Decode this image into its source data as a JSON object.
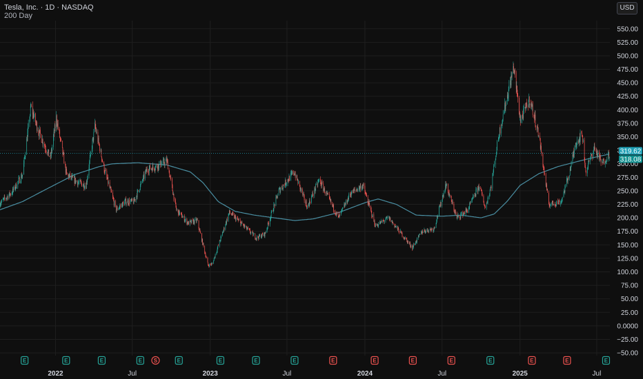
{
  "header": {
    "symbol_line": "Tesla, Inc. · 1D · NASDAQ",
    "indicator": "200 Day"
  },
  "currency_button": "USD",
  "colors": {
    "background": "#0f0f0f",
    "grid": "#1f1f1f",
    "up": "#26a69a",
    "down": "#ef5350",
    "ma": "#4a8fa3",
    "price_label": "#1f9fb5",
    "ma_label": "#0f8f8f"
  },
  "chart_data": {
    "type": "candlestick",
    "y_ticks": [
      550,
      525,
      500,
      475,
      450,
      425,
      400,
      375,
      350,
      325,
      300,
      275,
      250,
      225,
      200,
      175,
      150,
      125,
      100,
      75,
      50,
      25,
      0,
      -25,
      -50
    ],
    "y_tick_labels": [
      "550.00",
      "525.00",
      "500.00",
      "475.00",
      "450.00",
      "425.00",
      "400.00",
      "375.00",
      "350.00",
      "325.00",
      "300.00",
      "275.00",
      "250.00",
      "225.00",
      "200.00",
      "175.00",
      "150.00",
      "125.00",
      "100.00",
      "75.00",
      "50.00",
      "25.00",
      "0.0000",
      "−25.00",
      "−50.00"
    ],
    "ylim": [
      -55,
      565
    ],
    "x_range": [
      "2021-08-23",
      "2025-08-01"
    ],
    "x_ticks": [
      {
        "date": "2022-01-01",
        "label": "2022",
        "bold": true
      },
      {
        "date": "2022-07-01",
        "label": "Jul",
        "bold": false
      },
      {
        "date": "2023-01-01",
        "label": "2023",
        "bold": true
      },
      {
        "date": "2023-07-01",
        "label": "Jul",
        "bold": false
      },
      {
        "date": "2024-01-01",
        "label": "2024",
        "bold": true
      },
      {
        "date": "2024-07-01",
        "label": "Jul",
        "bold": false
      },
      {
        "date": "2025-01-01",
        "label": "2025",
        "bold": true
      },
      {
        "date": "2025-07-01",
        "label": "Jul",
        "bold": false
      }
    ],
    "price_path": [
      [
        "2021-08-23",
        227
      ],
      [
        "2021-09-20",
        247
      ],
      [
        "2021-10-15",
        280
      ],
      [
        "2021-11-04",
        405
      ],
      [
        "2021-11-22",
        360
      ],
      [
        "2021-12-06",
        335
      ],
      [
        "2021-12-20",
        310
      ],
      [
        "2022-01-03",
        385
      ],
      [
        "2022-01-27",
        280
      ],
      [
        "2022-02-24",
        265
      ],
      [
        "2022-03-14",
        260
      ],
      [
        "2022-04-04",
        370
      ],
      [
        "2022-04-26",
        290
      ],
      [
        "2022-05-24",
        215
      ],
      [
        "2022-06-15",
        230
      ],
      [
        "2022-07-05",
        230
      ],
      [
        "2022-08-05",
        290
      ],
      [
        "2022-08-25",
        295
      ],
      [
        "2022-09-21",
        305
      ],
      [
        "2022-10-13",
        215
      ],
      [
        "2022-11-10",
        190
      ],
      [
        "2022-12-01",
        195
      ],
      [
        "2022-12-27",
        112
      ],
      [
        "2023-01-06",
        115
      ],
      [
        "2023-02-15",
        210
      ],
      [
        "2023-03-01",
        200
      ],
      [
        "2023-04-20",
        163
      ],
      [
        "2023-05-10",
        170
      ],
      [
        "2023-06-12",
        250
      ],
      [
        "2023-07-18",
        285
      ],
      [
        "2023-08-18",
        220
      ],
      [
        "2023-09-15",
        270
      ],
      [
        "2023-10-31",
        200
      ],
      [
        "2023-11-28",
        245
      ],
      [
        "2023-12-27",
        260
      ],
      [
        "2024-01-26",
        185
      ],
      [
        "2024-02-26",
        200
      ],
      [
        "2024-04-22",
        145
      ],
      [
        "2024-05-15",
        175
      ],
      [
        "2024-06-12",
        180
      ],
      [
        "2024-07-10",
        262
      ],
      [
        "2024-08-05",
        200
      ],
      [
        "2024-08-30",
        214
      ],
      [
        "2024-09-27",
        260
      ],
      [
        "2024-10-11",
        218
      ],
      [
        "2024-10-25",
        260
      ],
      [
        "2024-11-11",
        350
      ],
      [
        "2024-12-17",
        480
      ],
      [
        "2025-01-02",
        380
      ],
      [
        "2025-01-24",
        420
      ],
      [
        "2025-02-14",
        355
      ],
      [
        "2025-03-10",
        225
      ],
      [
        "2025-04-08",
        230
      ],
      [
        "2025-04-28",
        285
      ],
      [
        "2025-05-13",
        340
      ],
      [
        "2025-05-28",
        355
      ],
      [
        "2025-06-05",
        285
      ],
      [
        "2025-06-25",
        330
      ],
      [
        "2025-07-14",
        300
      ],
      [
        "2025-07-31",
        319.62
      ]
    ],
    "ma_200_path": [
      [
        "2021-08-23",
        215
      ],
      [
        "2021-10-15",
        230
      ],
      [
        "2021-12-15",
        255
      ],
      [
        "2022-02-15",
        280
      ],
      [
        "2022-04-15",
        295
      ],
      [
        "2022-05-15",
        300
      ],
      [
        "2022-07-15",
        302
      ],
      [
        "2022-08-15",
        300
      ],
      [
        "2022-09-20",
        298
      ],
      [
        "2022-11-15",
        285
      ],
      [
        "2022-12-15",
        265
      ],
      [
        "2023-01-20",
        230
      ],
      [
        "2023-03-01",
        212
      ],
      [
        "2023-04-15",
        205
      ],
      [
        "2023-06-01",
        200
      ],
      [
        "2023-07-20",
        195
      ],
      [
        "2023-09-01",
        198
      ],
      [
        "2023-11-01",
        210
      ],
      [
        "2024-01-01",
        228
      ],
      [
        "2024-02-01",
        235
      ],
      [
        "2024-03-15",
        225
      ],
      [
        "2024-05-01",
        205
      ],
      [
        "2024-07-01",
        203
      ],
      [
        "2024-08-15",
        205
      ],
      [
        "2024-10-01",
        200
      ],
      [
        "2024-11-01",
        207
      ],
      [
        "2024-12-01",
        230
      ],
      [
        "2025-01-01",
        260
      ],
      [
        "2025-02-15",
        282
      ],
      [
        "2025-04-01",
        295
      ],
      [
        "2025-05-15",
        304
      ],
      [
        "2025-06-20",
        311
      ],
      [
        "2025-07-31",
        318.08
      ]
    ],
    "last_price": "319.62",
    "ma_value": "318.08",
    "events": [
      {
        "date": "2021-10-20",
        "type": "E",
        "kind": "earnings-positive"
      },
      {
        "date": "2022-01-26",
        "type": "E",
        "kind": "earnings-positive"
      },
      {
        "date": "2022-04-20",
        "type": "E",
        "kind": "earnings-positive"
      },
      {
        "date": "2022-07-20",
        "type": "E",
        "kind": "earnings-positive"
      },
      {
        "date": "2022-08-25",
        "type": "S",
        "kind": "split"
      },
      {
        "date": "2022-10-19",
        "type": "E",
        "kind": "earnings-positive"
      },
      {
        "date": "2023-01-25",
        "type": "E",
        "kind": "earnings-positive"
      },
      {
        "date": "2023-04-19",
        "type": "E",
        "kind": "earnings-positive"
      },
      {
        "date": "2023-07-19",
        "type": "E",
        "kind": "earnings-positive"
      },
      {
        "date": "2023-10-18",
        "type": "E",
        "kind": "earnings-negative"
      },
      {
        "date": "2024-01-24",
        "type": "E",
        "kind": "earnings-negative"
      },
      {
        "date": "2024-04-23",
        "type": "E",
        "kind": "earnings-negative"
      },
      {
        "date": "2024-07-23",
        "type": "E",
        "kind": "earnings-negative"
      },
      {
        "date": "2024-10-23",
        "type": "E",
        "kind": "earnings-positive"
      },
      {
        "date": "2025-01-29",
        "type": "E",
        "kind": "earnings-negative"
      },
      {
        "date": "2025-04-22",
        "type": "E",
        "kind": "earnings-negative"
      },
      {
        "date": "2025-07-23",
        "type": "E",
        "kind": "earnings-positive"
      }
    ]
  }
}
